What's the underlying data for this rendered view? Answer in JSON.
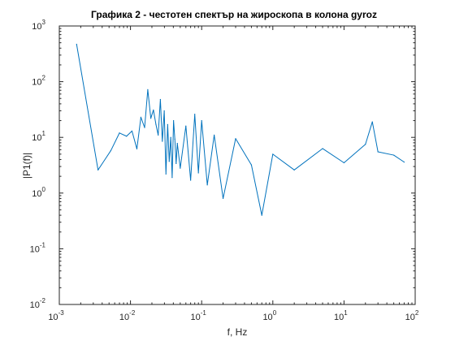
{
  "chart_data": {
    "type": "line",
    "title": "Графика 2 - честотен спектър на жироскопа в колона gyroz",
    "xlabel": "f, Hz",
    "ylabel": "|P1(f)|",
    "xscale": "log",
    "yscale": "log",
    "xlim": [
      0.001,
      100
    ],
    "ylim": [
      0.01,
      1000
    ],
    "grid": false,
    "series": [
      {
        "color": "#0072bd",
        "x": [
          0.00175,
          0.0035,
          0.0053,
          0.007,
          0.0088,
          0.0105,
          0.0123,
          0.014,
          0.0158,
          0.0175,
          0.0193,
          0.021,
          0.0228,
          0.0245,
          0.0263,
          0.028,
          0.0298,
          0.0315,
          0.0333,
          0.035,
          0.0368,
          0.0385,
          0.0403,
          0.042,
          0.0438,
          0.0455,
          0.05,
          0.06,
          0.07,
          0.08,
          0.09,
          0.1,
          0.12,
          0.15,
          0.2,
          0.3,
          0.5,
          0.7,
          1,
          2,
          5,
          10,
          20,
          25,
          30,
          50,
          70
        ],
        "y": [
          470,
          2.6,
          5.8,
          12,
          10.5,
          13,
          6.2,
          23,
          15,
          72,
          22,
          31,
          17,
          11,
          48,
          8.5,
          30,
          2.2,
          17,
          3.7,
          10,
          1.9,
          20,
          9.3,
          3.4,
          7.8,
          2.8,
          16,
          1.7,
          26,
          2.3,
          20,
          1.4,
          11,
          0.8,
          9.5,
          3.2,
          0.4,
          5,
          2.6,
          6.3,
          3.5,
          7.5,
          19,
          5.5,
          4.8,
          3.6
        ]
      }
    ]
  }
}
